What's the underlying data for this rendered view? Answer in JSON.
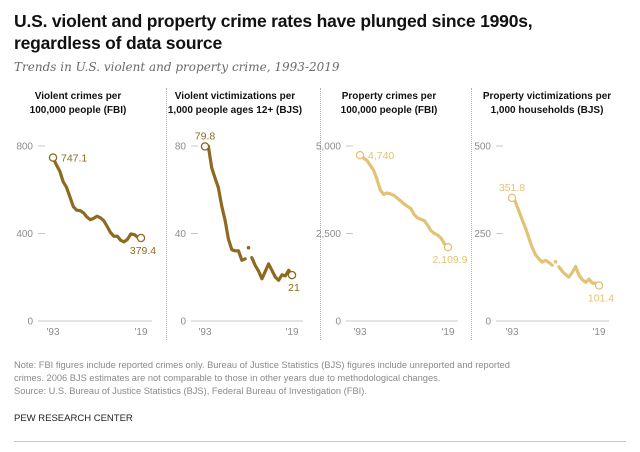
{
  "title": "U.S. violent and property crime rates have plunged since 1990s, regardless of data source",
  "subtitle": "Trends in U.S. violent and property crime, 1993-2019",
  "colors": {
    "dark_gold": "#8d6a1f",
    "light_gold": "#e2c274",
    "axis": "#c8c8c8",
    "tick_text": "#8c8c8c"
  },
  "chart_data": [
    {
      "type": "line",
      "title": "Violent crimes per 100,000 people (FBI)",
      "title_lines": [
        "Violent crimes per",
        "100,000 people (FBI)"
      ],
      "color": "#8d6a1f",
      "x": [
        1993,
        1994,
        1995,
        1996,
        1997,
        1998,
        1999,
        2000,
        2001,
        2002,
        2003,
        2004,
        2005,
        2006,
        2007,
        2008,
        2009,
        2010,
        2011,
        2012,
        2013,
        2014,
        2015,
        2016,
        2017,
        2018,
        2019
      ],
      "values": [
        747.1,
        713.6,
        684.5,
        636.6,
        611.0,
        567.6,
        523.0,
        506.5,
        504.5,
        494.4,
        475.8,
        463.2,
        469.0,
        479.3,
        471.8,
        458.6,
        431.9,
        404.5,
        387.1,
        387.8,
        369.1,
        361.6,
        373.7,
        397.5,
        394.9,
        383.4,
        379.4
      ],
      "gaps": [],
      "yticks": [
        0,
        400,
        800
      ],
      "ytick_labels": [
        "0",
        "400",
        "800"
      ],
      "ylim": [
        0,
        800
      ],
      "xtick_labels": [
        "'93",
        "'19"
      ],
      "start_label": "747.1",
      "end_label": "379.4"
    },
    {
      "type": "line",
      "title": "Violent victimizations per 1,000 people ages 12+ (BJS)",
      "title_lines": [
        "Violent victimizations per",
        "1,000 people ages 12+ (BJS)"
      ],
      "color": "#8d6a1f",
      "x": [
        1993,
        1994,
        1995,
        1996,
        1997,
        1998,
        1999,
        2000,
        2001,
        2002,
        2003,
        2004,
        2005,
        2006,
        2007,
        2008,
        2009,
        2010,
        2011,
        2012,
        2013,
        2014,
        2015,
        2016,
        2017,
        2018,
        2019
      ],
      "values": [
        79.8,
        80.0,
        70.1,
        65.4,
        60.9,
        52.6,
        46.0,
        37.5,
        32.6,
        32.1,
        32.1,
        27.8,
        28.4,
        33.5,
        29.0,
        25.4,
        22.9,
        19.3,
        22.6,
        26.1,
        23.2,
        20.1,
        18.6,
        21.1,
        20.6,
        23.2,
        21.0
      ],
      "gaps": [
        2006
      ],
      "yticks": [
        0,
        40,
        80
      ],
      "ytick_labels": [
        "0",
        "40",
        "80"
      ],
      "ylim": [
        0,
        80
      ],
      "xtick_labels": [
        "'93",
        "'19"
      ],
      "start_label": "79.8",
      "end_label": "21"
    },
    {
      "type": "line",
      "title": "Property crimes per 100,000 people (FBI)",
      "title_lines": [
        "Property crimes per",
        "100,000 people (FBI)"
      ],
      "color": "#e2c274",
      "x": [
        1993,
        1994,
        1995,
        1996,
        1997,
        1998,
        1999,
        2000,
        2001,
        2002,
        2003,
        2004,
        2005,
        2006,
        2007,
        2008,
        2009,
        2010,
        2011,
        2012,
        2013,
        2014,
        2015,
        2016,
        2017,
        2018,
        2019
      ],
      "values": [
        4740,
        4660,
        4591,
        4451,
        4316,
        4052,
        3743,
        3618,
        3658,
        3631,
        3591,
        3515,
        3431,
        3346,
        3276,
        3214,
        3041,
        2946,
        2905,
        2868,
        2734,
        2574,
        2500,
        2451,
        2362,
        2200,
        2109.9
      ],
      "gaps": [],
      "yticks": [
        0,
        2500,
        5000
      ],
      "ytick_labels": [
        "0",
        "2,500",
        "5,000"
      ],
      "ylim": [
        0,
        5000
      ],
      "xtick_labels": [
        "'93",
        "'19"
      ],
      "start_label": "4,740",
      "end_label": "2,109.9"
    },
    {
      "type": "line",
      "title": "Property victimizations per 1,000 households (BJS)",
      "title_lines": [
        "Property victimizations per",
        "1,000 households (BJS)"
      ],
      "color": "#e2c274",
      "x": [
        1993,
        1994,
        1995,
        1996,
        1997,
        1998,
        1999,
        2000,
        2001,
        2002,
        2003,
        2004,
        2005,
        2006,
        2007,
        2008,
        2009,
        2010,
        2011,
        2012,
        2013,
        2014,
        2015,
        2016,
        2017,
        2018,
        2019
      ],
      "values": [
        351.8,
        341.2,
        315.5,
        290.5,
        266.3,
        238.7,
        210.6,
        190.4,
        177.7,
        168.2,
        173.4,
        167.5,
        159.5,
        169.0,
        154.9,
        142.7,
        132.7,
        125.4,
        138.7,
        155.8,
        131.4,
        118.1,
        110.7,
        119.4,
        108.2,
        108.2,
        101.4
      ],
      "gaps": [
        2006
      ],
      "yticks": [
        0,
        250,
        500
      ],
      "ytick_labels": [
        "0",
        "250",
        "500"
      ],
      "ylim": [
        0,
        500
      ],
      "xtick_labels": [
        "'93",
        "'19"
      ],
      "start_label": "351.8",
      "end_label": "101.4"
    }
  ],
  "footer": {
    "note_line1": "Note: FBI figures include reported crimes only. Bureau of Justice Statistics (BJS) figures include unreported and reported",
    "note_line2": "crimes. 2006 BJS estimates are not comparable to those in other years due to methodological changes.",
    "source": "Source: U.S. Bureau of Justice Statistics (BJS), Federal Bureau of Investigation (FBI).",
    "org": "PEW RESEARCH CENTER"
  }
}
